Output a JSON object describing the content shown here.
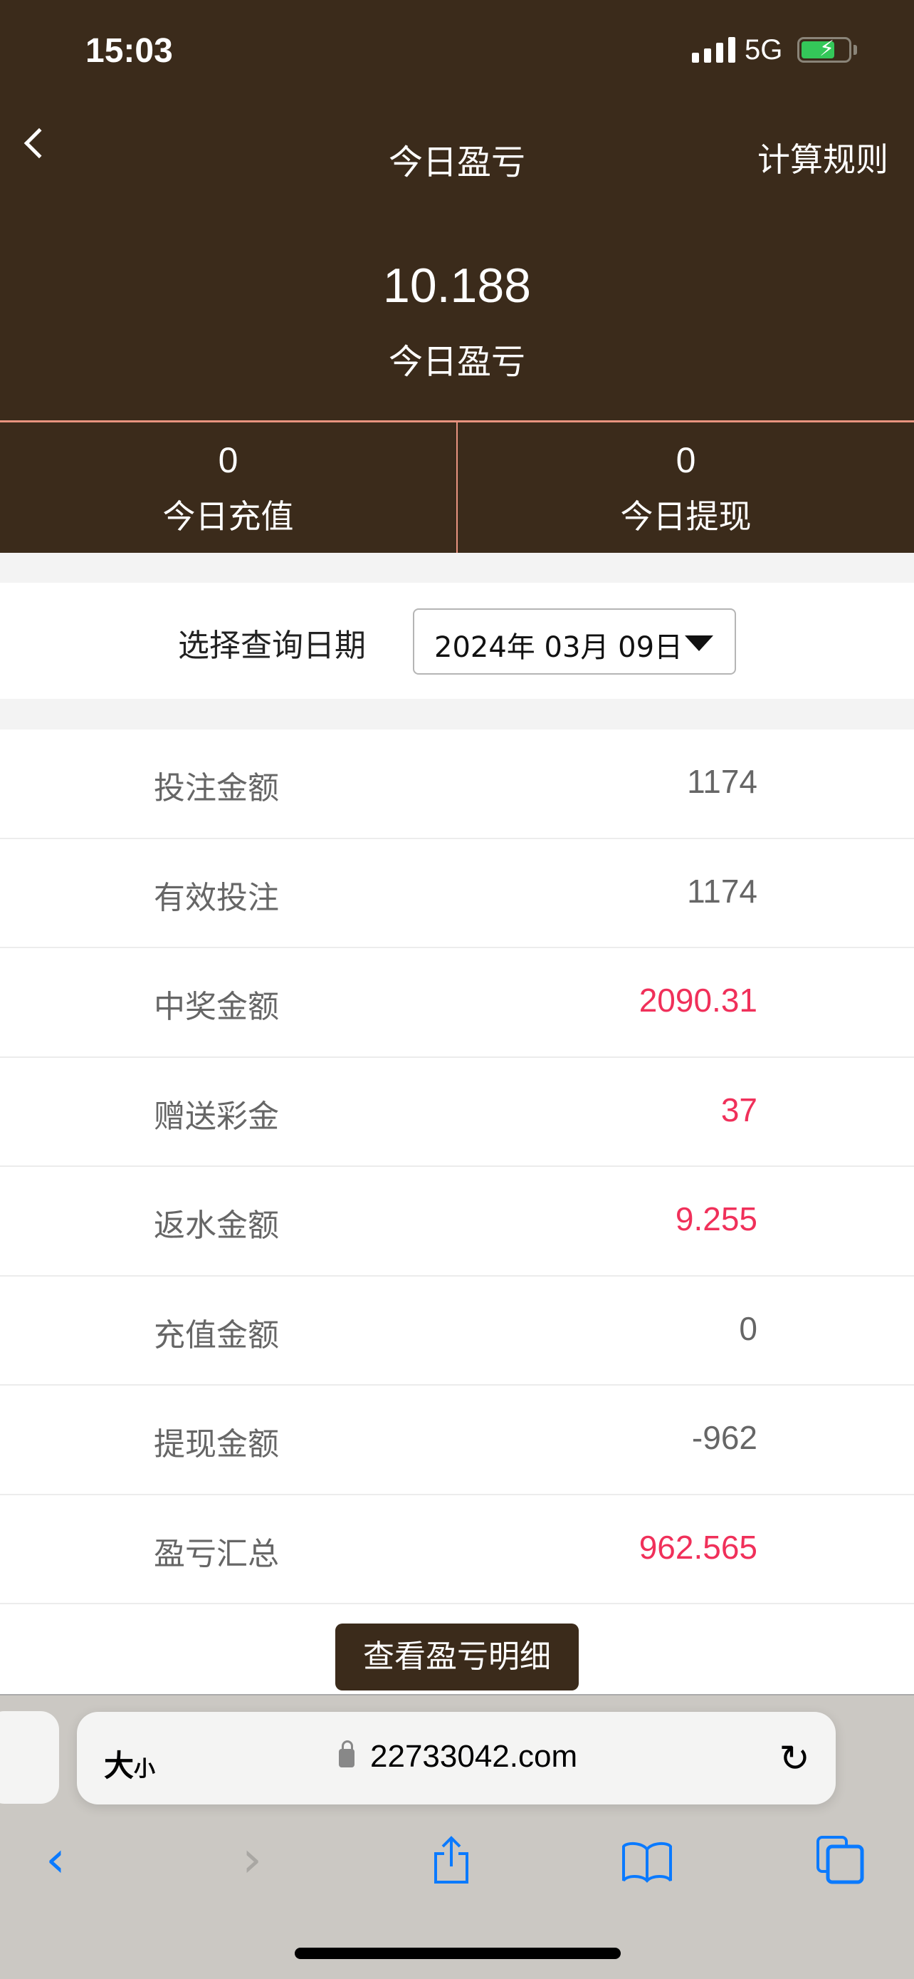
{
  "status_bar": {
    "time": "15:03",
    "network": "5G"
  },
  "nav": {
    "title": "今日盈亏",
    "right_link": "计算规则"
  },
  "summary": {
    "value": "10.188",
    "label": "今日盈亏"
  },
  "stats": [
    {
      "value": "0",
      "label": "今日充值"
    },
    {
      "value": "0",
      "label": "今日提现"
    }
  ],
  "date_filter": {
    "label": "选择查询日期",
    "value": "2024年 03月 09日"
  },
  "rows": [
    {
      "label": "投注金额",
      "value": "1174",
      "highlight": false
    },
    {
      "label": "有效投注",
      "value": "1174",
      "highlight": false
    },
    {
      "label": "中奖金额",
      "value": "2090.31",
      "highlight": true
    },
    {
      "label": "赠送彩金",
      "value": "37",
      "highlight": true
    },
    {
      "label": "返水金额",
      "value": "9.255",
      "highlight": true
    },
    {
      "label": "充值金额",
      "value": "0",
      "highlight": false
    },
    {
      "label": "提现金额",
      "value": "-962",
      "highlight": false
    },
    {
      "label": "盈亏汇总",
      "value": "962.565",
      "highlight": true
    }
  ],
  "detail_button": "查看盈亏明细",
  "browser": {
    "text_size": "大",
    "text_size_small": "小",
    "url": "22733042.com"
  },
  "colors": {
    "header": "#3b2b1b",
    "highlight": "#f0305a",
    "accent": "#0a7aff"
  }
}
